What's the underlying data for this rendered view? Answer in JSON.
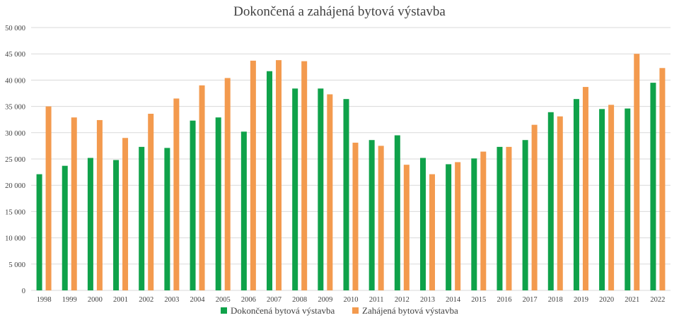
{
  "chart_data": {
    "type": "bar",
    "title": "Dokončená a zahájená bytová výstavba",
    "xlabel": "",
    "ylabel": "",
    "ylim": [
      0,
      50000
    ],
    "y_ticks": [
      "0",
      "5 000",
      "10 000",
      "15 000",
      "20 000",
      "25 000",
      "30 000",
      "35 000",
      "40 000",
      "45 000",
      "50 000"
    ],
    "y_tick_values": [
      0,
      5000,
      10000,
      15000,
      20000,
      25000,
      30000,
      35000,
      40000,
      45000,
      50000
    ],
    "grid": true,
    "legend_position": "bottom",
    "categories": [
      "1998",
      "1999",
      "2000",
      "2001",
      "2002",
      "2003",
      "2004",
      "2005",
      "2006",
      "2007",
      "2008",
      "2009",
      "2010",
      "2011",
      "2012",
      "2013",
      "2014",
      "2015",
      "2016",
      "2017",
      "2018",
      "2019",
      "2020",
      "2021",
      "2022"
    ],
    "series": [
      {
        "name": "Dokončená bytová výstavba",
        "color": "#0fa24a",
        "values": [
          22100,
          23700,
          25200,
          24800,
          27300,
          27100,
          32300,
          32900,
          30200,
          41700,
          38400,
          38400,
          36400,
          28600,
          29500,
          25200,
          24000,
          25100,
          27300,
          28600,
          33900,
          36400,
          34500,
          34600,
          39500
        ]
      },
      {
        "name": "Zahájená bytová výstavba",
        "color": "#f39a4e",
        "values": [
          35000,
          32900,
          32400,
          29000,
          33600,
          36500,
          39000,
          40400,
          43700,
          43800,
          43600,
          37300,
          28100,
          27500,
          23900,
          22100,
          24400,
          26400,
          27300,
          31500,
          33100,
          38700,
          35300,
          45000,
          42300
        ]
      }
    ]
  }
}
